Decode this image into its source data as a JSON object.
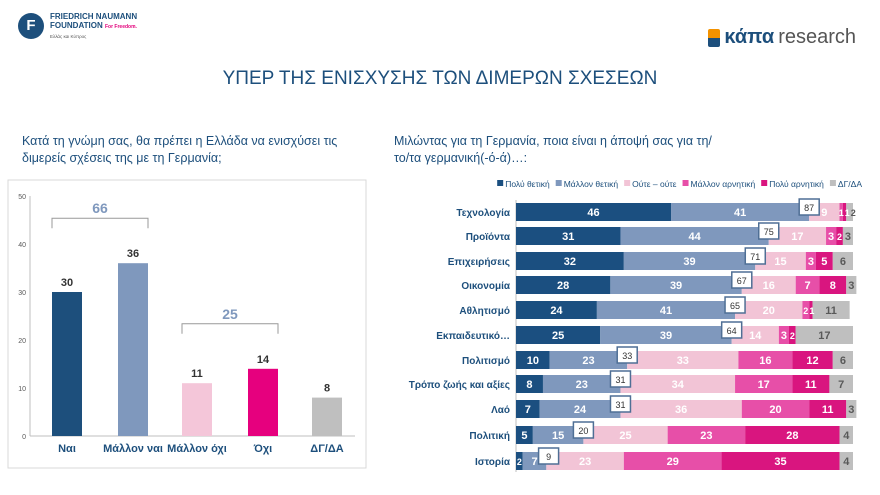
{
  "header": {
    "logo_left_line1": "FRIEDRICH NAUMANN",
    "logo_left_line2": "FOUNDATION",
    "logo_left_tagline": "For Freedom.",
    "logo_left_sub": "Ελλάς και Κύπρος",
    "logo_left_letter": "F",
    "logo_right_a": "κάπα",
    "logo_right_b": "research",
    "title": "ΥΠΕΡ ΤΗΣ ΕΝΙΣΧΥΣΗΣ ΤΩΝ ΔΙΜΕΡΩΝ ΣΧΕΣΕΩΝ"
  },
  "chart_data": [
    {
      "type": "bar",
      "title": "Κατά τη γνώμη σας, θα πρέπει η Ελλάδα να ενισχύσει τις διμερείς σχέσεις της με τη Γερμανία;",
      "categories": [
        "Ναι",
        "Μάλλον ναι",
        "Μάλλον όχι",
        "Όχι",
        "ΔΓ/ΔΑ"
      ],
      "values": [
        30,
        36,
        11,
        14,
        8
      ],
      "colors": [
        "#1d4f7c",
        "#7f98bd",
        "#f4c6d9",
        "#e6007e",
        "#bfbfbf"
      ],
      "ylim": [
        0,
        50
      ],
      "yticks": [
        0,
        10,
        20,
        30,
        40,
        50
      ],
      "annotations": [
        {
          "label": "66",
          "span": [
            0,
            1
          ]
        },
        {
          "label": "25",
          "span": [
            2,
            3
          ]
        }
      ]
    },
    {
      "type": "stacked-bar-horizontal",
      "title": "Μιλώντας για τη Γερμανία, ποια είναι η άποψή σας για τη/το/τα γερμανική(-ό-ά)…:",
      "legend_position": "top-right",
      "series_names": [
        "Πολύ θετική",
        "Μάλλον θετική",
        "Ούτε – ούτε",
        "Μάλλον αρνητική",
        "Πολύ αρνητική",
        "ΔΓ/ΔΑ"
      ],
      "colors": [
        "#1b4f80",
        "#7f98bd",
        "#f2c4d6",
        "#e74fa8",
        "#d9157f",
        "#bfbfbf"
      ],
      "categories": [
        "Τεχνολογία",
        "Προϊόντα",
        "Επιχειρήσεις",
        "Οικονομία",
        "Αθλητισμό",
        "Εκπαιδευτικό…",
        "Πολιτισμό",
        "Τρόπο ζωής και αξίες",
        "Λαό",
        "Πολιτική",
        "Ιστορία"
      ],
      "values": [
        [
          46,
          41,
          9,
          1,
          1,
          2
        ],
        [
          31,
          44,
          17,
          3,
          2,
          3
        ],
        [
          32,
          39,
          15,
          3,
          5,
          6
        ],
        [
          28,
          39,
          16,
          7,
          8,
          3
        ],
        [
          24,
          41,
          20,
          2,
          1,
          11
        ],
        [
          25,
          39,
          14,
          3,
          2,
          17
        ],
        [
          10,
          23,
          33,
          16,
          12,
          6
        ],
        [
          8,
          23,
          34,
          17,
          11,
          7
        ],
        [
          7,
          24,
          36,
          20,
          11,
          3
        ],
        [
          5,
          15,
          25,
          23,
          28,
          4
        ],
        [
          2,
          7,
          23,
          29,
          35,
          4
        ]
      ],
      "net_positive": [
        87,
        75,
        71,
        67,
        65,
        64,
        33,
        31,
        31,
        20,
        9
      ]
    }
  ]
}
